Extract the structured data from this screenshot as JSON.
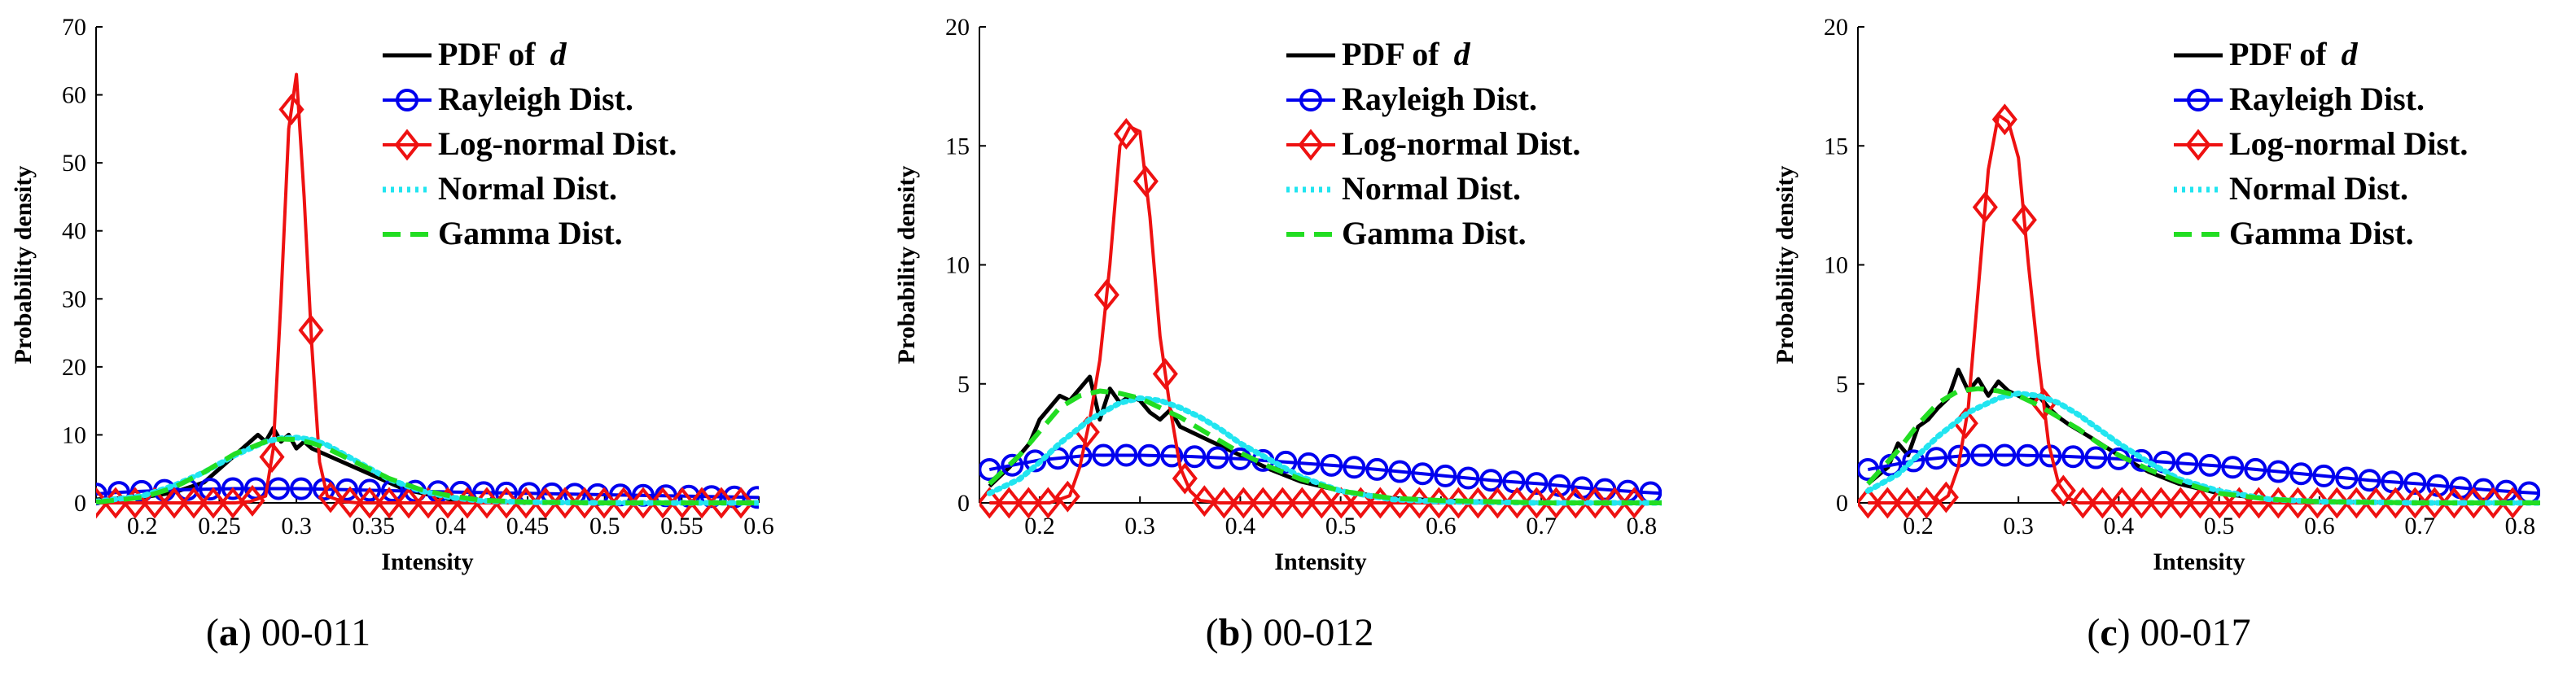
{
  "chart_data": [
    {
      "type": "line",
      "caption": {
        "letter": "a",
        "rest": " 00-011"
      },
      "xlabel": "Intensity",
      "ylabel": "Probability density",
      "xlim": [
        0.17,
        0.6
      ],
      "ylim": [
        0,
        70
      ],
      "xticks": [
        0.2,
        0.25,
        0.3,
        0.35,
        0.4,
        0.45,
        0.5,
        0.55,
        0.6
      ],
      "xtick_labels": [
        "0.2",
        "0.25",
        "0.3",
        "0.35",
        "0.4",
        "0.45",
        "0.5",
        "0.55",
        "0.6"
      ],
      "yticks": [
        0,
        10,
        20,
        30,
        40,
        50,
        60,
        70
      ],
      "ytick_labels": [
        "0",
        "10",
        "20",
        "30",
        "40",
        "50",
        "60",
        "70"
      ],
      "legend": [
        "PDF of ",
        "Rayleigh Dist.",
        "Log-normal Dist.",
        "Normal Dist.",
        "Gamma Dist."
      ],
      "legend_italic": "d",
      "legend_position": "top-right",
      "series": [
        {
          "name": "PDF of d",
          "x": [
            0.17,
            0.2,
            0.22,
            0.24,
            0.25,
            0.26,
            0.265,
            0.27,
            0.275,
            0.28,
            0.285,
            0.29,
            0.295,
            0.3,
            0.305,
            0.31,
            0.32,
            0.33,
            0.34,
            0.35,
            0.36,
            0.37,
            0.38,
            0.39,
            0.4,
            0.42,
            0.45
          ],
          "y": [
            0.5,
            0.8,
            1.5,
            3,
            5,
            7,
            8,
            9,
            10,
            9,
            11,
            9,
            10,
            8,
            9,
            8,
            7,
            6,
            5,
            4,
            3,
            2,
            1.5,
            1,
            0.5,
            0.2,
            0
          ]
        },
        {
          "name": "Rayleigh Dist.",
          "x": [
            0.17,
            0.18,
            0.2,
            0.22,
            0.24,
            0.26,
            0.28,
            0.3,
            0.32,
            0.34,
            0.36,
            0.38,
            0.4,
            0.45,
            0.5,
            0.55,
            0.6
          ],
          "y": [
            1.3,
            1.5,
            1.7,
            1.9,
            2.0,
            2.1,
            2.1,
            2.1,
            2.0,
            1.9,
            1.8,
            1.7,
            1.6,
            1.4,
            1.2,
            1.0,
            0.8
          ]
        },
        {
          "name": "Log-normal Dist.",
          "x": [
            0.17,
            0.18,
            0.19,
            0.2,
            0.21,
            0.22,
            0.23,
            0.24,
            0.25,
            0.26,
            0.27,
            0.28,
            0.285,
            0.29,
            0.295,
            0.3,
            0.305,
            0.31,
            0.315,
            0.32,
            0.33,
            0.34,
            0.35,
            0.36,
            0.37,
            0.38,
            0.39,
            0.4,
            0.42,
            0.45,
            0.5,
            0.55,
            0.6
          ],
          "y": [
            0,
            0,
            0,
            0,
            0,
            0,
            0,
            0,
            0,
            0,
            0.2,
            1,
            8,
            30,
            55,
            63,
            45,
            23,
            6,
            1,
            0.2,
            0,
            0,
            0,
            0,
            0,
            0,
            0,
            0,
            0,
            0,
            0,
            0
          ]
        },
        {
          "name": "Normal Dist.",
          "x": [
            0.17,
            0.2,
            0.22,
            0.24,
            0.26,
            0.28,
            0.29,
            0.3,
            0.31,
            0.32,
            0.34,
            0.36,
            0.38,
            0.4,
            0.42,
            0.45,
            0.5,
            0.6
          ],
          "y": [
            0.2,
            1,
            2.5,
            4.5,
            7,
            9,
            9.5,
            9.6,
            9.3,
            8.5,
            6,
            3.5,
            1.8,
            0.8,
            0.3,
            0.1,
            0,
            0
          ]
        },
        {
          "name": "Gamma Dist.",
          "x": [
            0.17,
            0.2,
            0.22,
            0.24,
            0.26,
            0.28,
            0.29,
            0.3,
            0.31,
            0.32,
            0.34,
            0.36,
            0.38,
            0.4,
            0.42,
            0.45,
            0.5,
            0.6
          ],
          "y": [
            0.1,
            0.8,
            2.2,
            4.5,
            7.2,
            9,
            9.4,
            9.3,
            8.8,
            8,
            5.8,
            3.6,
            2,
            1,
            0.4,
            0.1,
            0,
            0
          ]
        }
      ]
    },
    {
      "type": "line",
      "caption": {
        "letter": "b",
        "rest": " 00-012"
      },
      "xlabel": "Intensity",
      "ylabel": "Probability density",
      "xlim": [
        0.14,
        0.82
      ],
      "ylim": [
        0,
        20
      ],
      "xticks": [
        0.2,
        0.3,
        0.4,
        0.5,
        0.6,
        0.7,
        0.8
      ],
      "xtick_labels": [
        "0.2",
        "0.3",
        "0.4",
        "0.5",
        "0.6",
        "0.7",
        "0.8"
      ],
      "yticks": [
        0,
        5,
        10,
        15,
        20
      ],
      "ytick_labels": [
        "0",
        "5",
        "10",
        "15",
        "20"
      ],
      "legend": [
        "PDF of ",
        "Rayleigh Dist.",
        "Log-normal Dist.",
        "Normal Dist.",
        "Gamma Dist."
      ],
      "legend_italic": "d",
      "legend_position": "top-right",
      "series": [
        {
          "name": "PDF of d",
          "x": [
            0.15,
            0.17,
            0.19,
            0.2,
            0.21,
            0.22,
            0.23,
            0.24,
            0.25,
            0.26,
            0.27,
            0.28,
            0.29,
            0.3,
            0.31,
            0.32,
            0.33,
            0.34,
            0.35,
            0.37,
            0.4,
            0.43,
            0.46,
            0.5,
            0.55,
            0.6,
            0.7,
            0.82
          ],
          "y": [
            0.7,
            1.5,
            2.5,
            3.5,
            4,
            4.5,
            4.3,
            4.8,
            5.3,
            3.5,
            4.8,
            4.2,
            4.5,
            4.3,
            3.8,
            3.5,
            3.9,
            3.2,
            3,
            2.6,
            2,
            1.4,
            0.9,
            0.5,
            0.2,
            0.1,
            0,
            0
          ]
        },
        {
          "name": "Rayleigh Dist.",
          "x": [
            0.15,
            0.2,
            0.25,
            0.3,
            0.35,
            0.4,
            0.45,
            0.5,
            0.55,
            0.6,
            0.65,
            0.7,
            0.75,
            0.8,
            0.82
          ],
          "y": [
            1.4,
            1.8,
            2.0,
            2.0,
            1.95,
            1.85,
            1.7,
            1.55,
            1.35,
            1.15,
            0.95,
            0.8,
            0.6,
            0.45,
            0.4
          ]
        },
        {
          "name": "Log-normal Dist.",
          "x": [
            0.15,
            0.17,
            0.19,
            0.21,
            0.23,
            0.24,
            0.25,
            0.26,
            0.27,
            0.28,
            0.29,
            0.3,
            0.31,
            0.32,
            0.33,
            0.34,
            0.35,
            0.36,
            0.38,
            0.4,
            0.45,
            0.5,
            0.55,
            0.6,
            0.65,
            0.7,
            0.75,
            0.8
          ],
          "y": [
            0,
            0,
            0,
            0,
            0.3,
            1.5,
            3.5,
            6,
            10,
            15,
            15.8,
            15.6,
            12,
            7,
            4,
            1.5,
            0.5,
            0.1,
            0,
            0,
            0,
            0,
            0,
            0,
            0,
            0,
            0,
            0
          ]
        },
        {
          "name": "Normal Dist.",
          "x": [
            0.15,
            0.18,
            0.2,
            0.22,
            0.25,
            0.28,
            0.3,
            0.32,
            0.34,
            0.36,
            0.38,
            0.4,
            0.43,
            0.46,
            0.5,
            0.55,
            0.6,
            0.7,
            0.82
          ],
          "y": [
            0.4,
            1,
            1.7,
            2.5,
            3.5,
            4.2,
            4.4,
            4.3,
            4,
            3.6,
            3.1,
            2.5,
            1.8,
            1.1,
            0.5,
            0.15,
            0.05,
            0,
            0
          ]
        },
        {
          "name": "Gamma Dist.",
          "x": [
            0.15,
            0.18,
            0.2,
            0.22,
            0.24,
            0.26,
            0.28,
            0.3,
            0.32,
            0.34,
            0.36,
            0.38,
            0.4,
            0.43,
            0.46,
            0.5,
            0.55,
            0.6,
            0.7,
            0.82
          ],
          "y": [
            0.8,
            2,
            3,
            4,
            4.5,
            4.7,
            4.6,
            4.4,
            4,
            3.6,
            3.1,
            2.6,
            2.1,
            1.5,
            1,
            0.5,
            0.2,
            0.1,
            0,
            0
          ]
        }
      ]
    },
    {
      "type": "line",
      "caption": {
        "letter": "c",
        "rest": " 00-017"
      },
      "xlabel": "Intensity",
      "ylabel": "Probability density",
      "xlim": [
        0.14,
        0.82
      ],
      "ylim": [
        0,
        20
      ],
      "xticks": [
        0.2,
        0.3,
        0.4,
        0.5,
        0.6,
        0.7,
        0.8
      ],
      "xtick_labels": [
        "0.2",
        "0.3",
        "0.4",
        "0.5",
        "0.6",
        "0.7",
        "0.8"
      ],
      "yticks": [
        0,
        5,
        10,
        15,
        20
      ],
      "ytick_labels": [
        "0",
        "5",
        "10",
        "15",
        "20"
      ],
      "legend": [
        "PDF of ",
        "Rayleigh Dist.",
        "Log-normal Dist.",
        "Normal Dist.",
        "Gamma Dist."
      ],
      "legend_italic": "d",
      "legend_position": "top-right",
      "series": [
        {
          "name": "PDF of d",
          "x": [
            0.15,
            0.17,
            0.18,
            0.19,
            0.2,
            0.21,
            0.22,
            0.23,
            0.24,
            0.25,
            0.26,
            0.27,
            0.28,
            0.29,
            0.3,
            0.31,
            0.32,
            0.33,
            0.34,
            0.35,
            0.37,
            0.4,
            0.43,
            0.46,
            0.5,
            0.55,
            0.6,
            0.7,
            0.82
          ],
          "y": [
            0.8,
            1.5,
            2.5,
            2,
            3.2,
            3.5,
            4,
            4.4,
            5.6,
            4.7,
            5.2,
            4.5,
            5.1,
            4.7,
            4.5,
            4.3,
            4.5,
            4,
            3.6,
            3.3,
            2.8,
            2,
            1.3,
            0.8,
            0.4,
            0.15,
            0.05,
            0,
            0
          ]
        },
        {
          "name": "Rayleigh Dist.",
          "x": [
            0.15,
            0.2,
            0.25,
            0.3,
            0.35,
            0.4,
            0.45,
            0.5,
            0.55,
            0.6,
            0.65,
            0.7,
            0.75,
            0.8,
            0.82
          ],
          "y": [
            1.4,
            1.8,
            2.0,
            2.0,
            1.95,
            1.85,
            1.7,
            1.55,
            1.35,
            1.15,
            0.95,
            0.8,
            0.6,
            0.45,
            0.4
          ]
        },
        {
          "name": "Log-normal Dist.",
          "x": [
            0.15,
            0.17,
            0.19,
            0.21,
            0.22,
            0.23,
            0.24,
            0.25,
            0.26,
            0.27,
            0.28,
            0.29,
            0.3,
            0.31,
            0.32,
            0.33,
            0.34,
            0.35,
            0.36,
            0.38,
            0.4,
            0.45,
            0.5,
            0.55,
            0.6,
            0.65,
            0.7,
            0.75,
            0.8
          ],
          "y": [
            0,
            0,
            0,
            0,
            0,
            0.3,
            1.5,
            4,
            9,
            14,
            16.3,
            16,
            14.5,
            10,
            6,
            2.5,
            0.8,
            0.2,
            0,
            0,
            0,
            0,
            0,
            0,
            0,
            0,
            0,
            0,
            0
          ]
        },
        {
          "name": "Normal Dist.",
          "x": [
            0.15,
            0.18,
            0.2,
            0.22,
            0.25,
            0.28,
            0.3,
            0.32,
            0.34,
            0.36,
            0.38,
            0.4,
            0.43,
            0.46,
            0.5,
            0.55,
            0.6,
            0.7,
            0.82
          ],
          "y": [
            0.5,
            1.2,
            2,
            2.8,
            3.8,
            4.4,
            4.6,
            4.5,
            4.2,
            3.7,
            3.1,
            2.5,
            1.7,
            1,
            0.5,
            0.15,
            0.05,
            0,
            0
          ]
        },
        {
          "name": "Gamma Dist.",
          "x": [
            0.15,
            0.18,
            0.2,
            0.22,
            0.24,
            0.26,
            0.28,
            0.3,
            0.32,
            0.34,
            0.36,
            0.38,
            0.4,
            0.43,
            0.46,
            0.5,
            0.55,
            0.6,
            0.7,
            0.82
          ],
          "y": [
            0.8,
            2.2,
            3.3,
            4.2,
            4.7,
            4.8,
            4.7,
            4.5,
            4.1,
            3.6,
            3.1,
            2.5,
            2,
            1.4,
            0.9,
            0.4,
            0.15,
            0.05,
            0,
            0
          ]
        }
      ]
    }
  ],
  "style": {
    "series_colors": [
      "#000000",
      "#0000ee",
      "#ee1111",
      "#22e5f0",
      "#22dd22"
    ]
  }
}
